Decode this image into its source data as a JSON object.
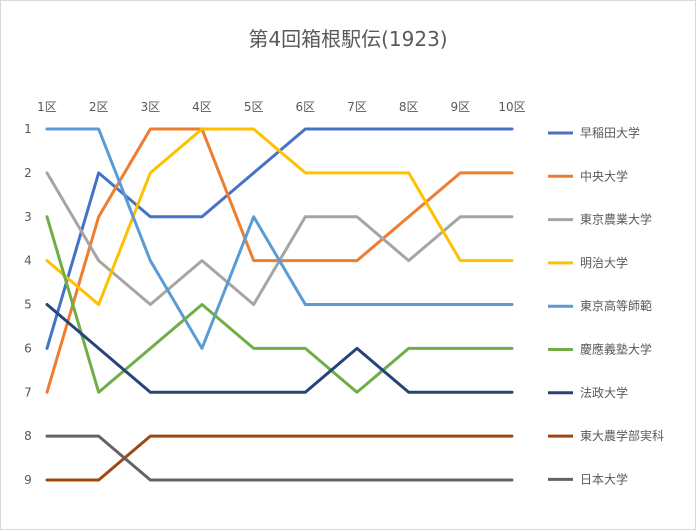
{
  "chart_data": {
    "type": "line",
    "title": "第4回箱根駅伝(1923)",
    "categories": [
      "1区",
      "2区",
      "3区",
      "4区",
      "5区",
      "6区",
      "7区",
      "8区",
      "9区",
      "10区"
    ],
    "y_ticks": [
      1,
      2,
      3,
      4,
      5,
      6,
      7,
      8,
      9
    ],
    "ylim": [
      1,
      9
    ],
    "y_reversed": true,
    "legend_position": "right",
    "grid": false,
    "series": [
      {
        "name": "早稲田大学",
        "color": "#4472C4",
        "values": [
          6,
          2,
          3,
          3,
          2,
          1,
          1,
          1,
          1,
          1
        ]
      },
      {
        "name": "中央大学",
        "color": "#ED7D31",
        "values": [
          7,
          3,
          1,
          1,
          4,
          4,
          4,
          3,
          2,
          2
        ]
      },
      {
        "name": "東京農業大学",
        "color": "#A5A5A5",
        "values": [
          2,
          4,
          5,
          4,
          5,
          3,
          3,
          4,
          3,
          3
        ]
      },
      {
        "name": "明治大学",
        "color": "#FFC000",
        "values": [
          4,
          5,
          2,
          1,
          1,
          2,
          2,
          2,
          4,
          4
        ]
      },
      {
        "name": "東京高等師範",
        "color": "#5B9BD5",
        "values": [
          1,
          1,
          4,
          6,
          3,
          5,
          5,
          5,
          5,
          5
        ]
      },
      {
        "name": "慶應義塾大学",
        "color": "#70AD47",
        "values": [
          3,
          7,
          6,
          5,
          6,
          6,
          7,
          6,
          6,
          6
        ]
      },
      {
        "name": "法政大学",
        "color": "#264478",
        "values": [
          5,
          6,
          7,
          7,
          7,
          7,
          6,
          7,
          7,
          7
        ]
      },
      {
        "name": "東大農学部実科",
        "color": "#9E480E",
        "values": [
          9,
          9,
          8,
          8,
          8,
          8,
          8,
          8,
          8,
          8
        ]
      },
      {
        "name": "日本大学",
        "color": "#636363",
        "values": [
          8,
          8,
          9,
          9,
          9,
          9,
          9,
          9,
          9,
          9
        ]
      }
    ]
  }
}
